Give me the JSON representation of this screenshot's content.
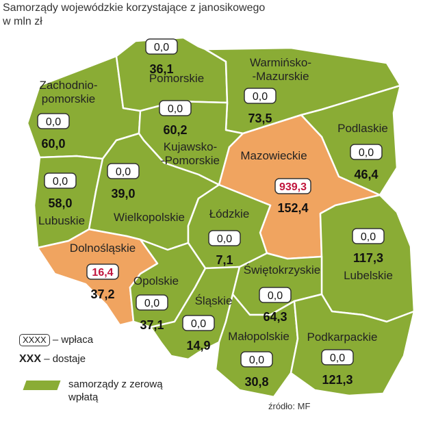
{
  "title": {
    "line1": "Samorządy wojewódzkie korzystające z janosikowego",
    "line2": "w mln zł"
  },
  "colors": {
    "zero_payment": "#8aac35",
    "paying": "#f0a460",
    "highlight_text": "#c0143c"
  },
  "regions": [
    {
      "id": "zachodniopomorskie",
      "name_lines": [
        "Zachodnio-",
        "pomorskie"
      ],
      "payment": "0,0",
      "receives": "60,0",
      "status": "zero"
    },
    {
      "id": "pomorskie",
      "name_lines": [
        "Pomorskie"
      ],
      "payment": "0,0",
      "receives": "36,1",
      "status": "zero"
    },
    {
      "id": "warminsko-mazurskie",
      "name_lines": [
        "Warmińsko-",
        "-Mazurskie"
      ],
      "payment": "0,0",
      "receives": "73,5",
      "status": "zero"
    },
    {
      "id": "podlaskie",
      "name_lines": [
        "Podlaskie"
      ],
      "payment": "0,0",
      "receives": "46,4",
      "status": "zero"
    },
    {
      "id": "kujawsko-pomorskie",
      "name_lines": [
        "Kujawsko-",
        "-Pomorskie"
      ],
      "payment": "0,0",
      "receives": "60,2",
      "status": "zero"
    },
    {
      "id": "mazowieckie",
      "name_lines": [
        "Mazowieckie"
      ],
      "payment": "939,3",
      "receives": "152,4",
      "status": "paying"
    },
    {
      "id": "lubuskie",
      "name_lines": [
        "Lubuskie"
      ],
      "payment": "0,0",
      "receives": "58,0",
      "status": "zero"
    },
    {
      "id": "wielkopolskie",
      "name_lines": [
        "Wielkopolskie"
      ],
      "payment": "0,0",
      "receives": "39,0",
      "status": "zero"
    },
    {
      "id": "lodzkie",
      "name_lines": [
        "Łódzkie"
      ],
      "payment": "0,0",
      "receives": "7,1",
      "status": "zero"
    },
    {
      "id": "lubelskie",
      "name_lines": [
        "Lubelskie"
      ],
      "payment": "0,0",
      "receives": "117,3",
      "status": "zero"
    },
    {
      "id": "dolnoslaskie",
      "name_lines": [
        "Dolnośląskie"
      ],
      "payment": "16,4",
      "receives": "37,2",
      "status": "paying"
    },
    {
      "id": "opolskie",
      "name_lines": [
        "Opolskie"
      ],
      "payment": "0,0",
      "receives": "37,1",
      "status": "zero"
    },
    {
      "id": "slaskie",
      "name_lines": [
        "Śląskie"
      ],
      "payment": "0,0",
      "receives": "14,9",
      "status": "zero"
    },
    {
      "id": "swietokrzyskie",
      "name_lines": [
        "Świętokrzyskie"
      ],
      "payment": "0,0",
      "receives": "64,3",
      "status": "zero"
    },
    {
      "id": "malopolskie",
      "name_lines": [
        "Małopolskie"
      ],
      "payment": "0,0",
      "receives": "30,8",
      "status": "zero"
    },
    {
      "id": "podkarpackie",
      "name_lines": [
        "Podkarpackie"
      ],
      "payment": "0,0",
      "receives": "121,3",
      "status": "zero"
    }
  ],
  "legend": {
    "box_sample": "XXXX",
    "box_label": "– wpłaca",
    "bold_sample": "XXX",
    "bold_label": "– dostaje",
    "swatch_label_1": "samorządy z zerową",
    "swatch_label_2": "wpłatą"
  },
  "source": "źródło: MF"
}
